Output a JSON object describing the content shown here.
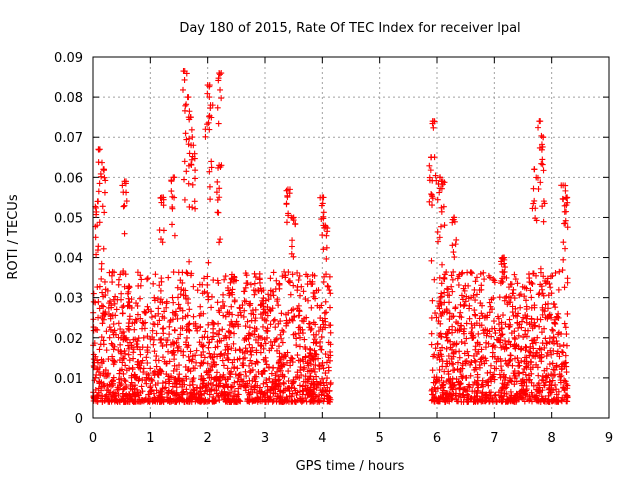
{
  "chart_data": {
    "type": "scatter",
    "title": "Day 180 of 2015, Rate Of TEC Index for receiver lpal",
    "xlabel": "GPS time / hours",
    "ylabel": "ROTI / TECUs",
    "xlim": [
      0,
      9
    ],
    "ylim": [
      0,
      0.09
    ],
    "xticks": [
      0,
      1,
      2,
      3,
      4,
      5,
      6,
      7,
      8,
      9
    ],
    "yticks": [
      0,
      0.01,
      0.02,
      0.03,
      0.04,
      0.05,
      0.06,
      0.07,
      0.08,
      0.09
    ],
    "ytick_labels": [
      "0",
      "0.01",
      "0.02",
      "0.03",
      "0.04",
      "0.05",
      "0.06",
      "0.07",
      "0.08",
      "0.09"
    ],
    "grid": true,
    "marker": "+",
    "color": "#ff0000",
    "series": [
      {
        "name": "ROTI",
        "segments": [
          {
            "x_start": 0.0,
            "x_end": 4.15
          },
          {
            "x_start": 5.9,
            "x_end": 8.28
          }
        ],
        "typical_range": [
          0.004,
          0.03
        ],
        "peaks": [
          {
            "x": 0.08,
            "y": 0.054
          },
          {
            "x": 0.12,
            "y": 0.067
          },
          {
            "x": 0.18,
            "y": 0.062
          },
          {
            "x": 0.55,
            "y": 0.059
          },
          {
            "x": 1.2,
            "y": 0.055
          },
          {
            "x": 1.4,
            "y": 0.06
          },
          {
            "x": 1.6,
            "y": 0.0865
          },
          {
            "x": 1.65,
            "y": 0.08
          },
          {
            "x": 1.7,
            "y": 0.075
          },
          {
            "x": 1.75,
            "y": 0.068
          },
          {
            "x": 2.0,
            "y": 0.083
          },
          {
            "x": 2.05,
            "y": 0.078
          },
          {
            "x": 2.2,
            "y": 0.086
          },
          {
            "x": 2.2,
            "y": 0.063
          },
          {
            "x": 3.4,
            "y": 0.057
          },
          {
            "x": 3.5,
            "y": 0.05
          },
          {
            "x": 4.0,
            "y": 0.055
          },
          {
            "x": 4.05,
            "y": 0.048
          },
          {
            "x": 5.95,
            "y": 0.074
          },
          {
            "x": 5.9,
            "y": 0.065
          },
          {
            "x": 6.05,
            "y": 0.06
          },
          {
            "x": 6.1,
            "y": 0.059
          },
          {
            "x": 6.3,
            "y": 0.05
          },
          {
            "x": 7.15,
            "y": 0.04
          },
          {
            "x": 7.7,
            "y": 0.062
          },
          {
            "x": 7.8,
            "y": 0.074
          },
          {
            "x": 7.85,
            "y": 0.07
          },
          {
            "x": 8.2,
            "y": 0.058
          },
          {
            "x": 8.25,
            "y": 0.055
          }
        ]
      }
    ]
  }
}
